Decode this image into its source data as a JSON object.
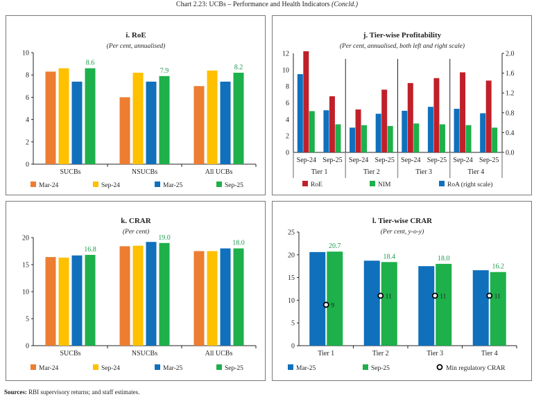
{
  "page_title": "Chart 2.23: UCBs – Performance and Health Indicators",
  "page_title_suffix": "(Concld.)",
  "sources_label": "Sources:",
  "sources_text": "RBI supervisory returns; and staff estimates.",
  "colors": {
    "Mar-24": "#ED7D31",
    "Sep-24": "#FFC000",
    "Mar-25": "#1070BC",
    "Sep-25": "#1DB04B",
    "RoE": "#C0202A",
    "NIM": "#1DB04B",
    "RoA": "#1070BC",
    "label": "#1E9A50"
  },
  "chart_data": [
    {
      "type": "bar",
      "title": "i. RoE",
      "subtitle": "(Per cent, annualised)",
      "categories": [
        "SUCBs",
        "NSUCBs",
        "All UCBs"
      ],
      "ylim": [
        0,
        10
      ],
      "yticks": [
        0,
        2,
        4,
        6,
        8,
        10
      ],
      "series": [
        {
          "name": "Mar-24",
          "values": [
            8.3,
            6.0,
            7.0
          ]
        },
        {
          "name": "Sep-24",
          "values": [
            8.6,
            8.2,
            8.4
          ]
        },
        {
          "name": "Mar-25",
          "values": [
            7.4,
            7.4,
            7.4
          ]
        },
        {
          "name": "Sep-25",
          "values": [
            8.6,
            7.9,
            8.2
          ],
          "labels": [
            "8.6",
            "7.9",
            "8.2"
          ]
        }
      ],
      "legend": "bottom"
    },
    {
      "type": "bar",
      "title": "j. Tier-wise Profitability",
      "subtitle": "(Per cent, annualised, both left and right scale)",
      "groups": [
        "Tier 1",
        "Tier 2",
        "Tier 3",
        "Tier 4"
      ],
      "categories": [
        "Sep-24",
        "Sep-25",
        "Sep-24",
        "Sep-25",
        "Sep-24",
        "Sep-25",
        "Sep-24",
        "Sep-25"
      ],
      "ylim": [
        0,
        12
      ],
      "yticks": [
        0,
        2,
        4,
        6,
        8,
        10,
        12
      ],
      "y2lim": [
        0,
        2.0
      ],
      "y2ticks": [
        "0.0",
        "0.4",
        "0.8",
        "1.2",
        "1.6",
        "2.0"
      ],
      "series": [
        {
          "name": "RoA (right scale)",
          "axis": "right",
          "values": [
            1.58,
            0.85,
            0.5,
            0.78,
            0.84,
            0.92,
            0.88,
            0.79
          ]
        },
        {
          "name": "RoE",
          "axis": "left",
          "values": [
            12.4,
            6.8,
            5.2,
            7.6,
            8.4,
            9.0,
            9.7,
            8.7
          ]
        },
        {
          "name": "NIM",
          "axis": "left",
          "values": [
            5.0,
            3.4,
            3.3,
            3.2,
            3.5,
            3.4,
            3.3,
            3.0
          ]
        }
      ],
      "legend_order": [
        "RoE",
        "NIM",
        "RoA (right scale)"
      ],
      "legend": "bottom"
    },
    {
      "type": "bar",
      "title": "k. CRAR",
      "subtitle": "(Per cent)",
      "categories": [
        "SUCBs",
        "NSUCBs",
        "All UCBs"
      ],
      "ylim": [
        0,
        20
      ],
      "yticks": [
        0,
        5,
        10,
        15,
        20
      ],
      "series": [
        {
          "name": "Mar-24",
          "values": [
            16.4,
            18.4,
            17.5
          ]
        },
        {
          "name": "Sep-24",
          "values": [
            16.3,
            18.5,
            17.5
          ]
        },
        {
          "name": "Mar-25",
          "values": [
            16.7,
            19.2,
            18.0
          ]
        },
        {
          "name": "Sep-25",
          "values": [
            16.8,
            19.0,
            18.0
          ],
          "labels": [
            "16.8",
            "19.0",
            "18.0"
          ]
        }
      ],
      "legend": "bottom"
    },
    {
      "type": "bar",
      "title": "l. Tier-wise CRAR",
      "subtitle": "(Per cent, y-o-y)",
      "categories": [
        "Tier 1",
        "Tier 2",
        "Tier 3",
        "Tier 4"
      ],
      "ylim": [
        0,
        25
      ],
      "yticks": [
        0,
        5,
        10,
        15,
        20,
        25
      ],
      "series": [
        {
          "name": "Mar-25",
          "values": [
            20.6,
            18.7,
            17.5,
            16.6
          ]
        },
        {
          "name": "Sep-25",
          "values": [
            20.7,
            18.4,
            18.0,
            16.2
          ],
          "labels": [
            "20.7",
            "18.4",
            "18.0",
            "16.2"
          ]
        }
      ],
      "markers": {
        "name": "Min regulatory CRAR",
        "values": [
          9,
          11,
          11,
          11
        ],
        "labels": [
          "9",
          "11",
          "11",
          "11"
        ]
      },
      "legend": "bottom"
    }
  ]
}
